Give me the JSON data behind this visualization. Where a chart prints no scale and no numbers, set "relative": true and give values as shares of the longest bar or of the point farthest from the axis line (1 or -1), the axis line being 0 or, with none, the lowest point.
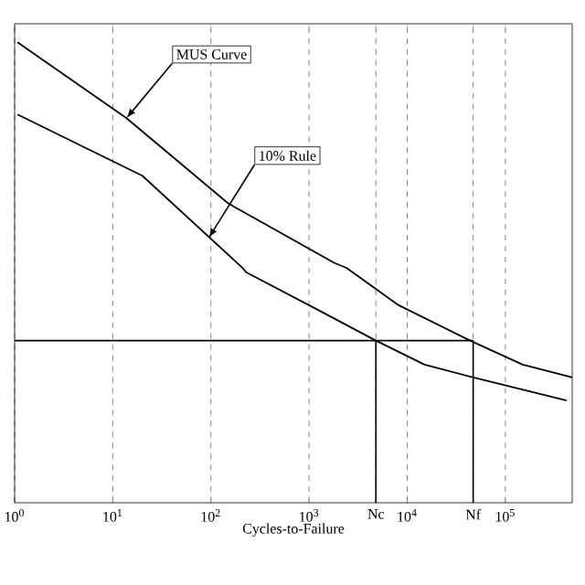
{
  "chart_data": {
    "type": "line",
    "xlabel": "Cycles-to-Failure",
    "log": "x",
    "relative": true,
    "grid": "x",
    "marker": "none",
    "line_style": "solid",
    "xlim": [
      1,
      480000
    ],
    "xticks": [
      {
        "value": 1,
        "label": "10$^{0}$"
      },
      {
        "value": 10,
        "label": "10$^{1}$"
      },
      {
        "value": 100,
        "label": "10$^{2}$"
      },
      {
        "value": 1000,
        "label": "10$^{3}$"
      },
      {
        "value": 10000,
        "label": "10$^{4}$"
      },
      {
        "value": 100000,
        "label": "10$^{5}$"
      },
      {
        "value": 4800,
        "label": "Nc"
      },
      {
        "value": 47000,
        "label": "Nf"
      }
    ],
    "series": [
      {
        "color": "#000000",
        "x": [
          1.07,
          13.8,
          150,
          1800,
          2400,
          8000,
          47000,
          150000,
          480000
        ],
        "values": [
          1.0,
          0.835,
          0.65,
          0.521,
          0.51,
          0.43,
          0.349,
          0.3,
          0.272
        ]
      },
      {
        "color": "#000000",
        "x": [
          1.07,
          20,
          210,
          230,
          1200,
          4800,
          15000,
          47000,
          420000
        ],
        "values": [
          0.843,
          0.71,
          0.51,
          0.5,
          0.42,
          0.352,
          0.3,
          0.272,
          0.222
        ]
      }
    ],
    "ref_lines": [
      {
        "axis": "y",
        "value": 0.352
      },
      {
        "axis": "x",
        "value": 4800
      },
      {
        "axis": "x",
        "value": 47000
      }
    ],
    "annotations": [
      {
        "text": "MUS Curve",
        "x": 13.8,
        "y": 0.835
      },
      {
        "text": "10% Rule",
        "x": 95,
        "y": 0.575
      }
    ]
  }
}
